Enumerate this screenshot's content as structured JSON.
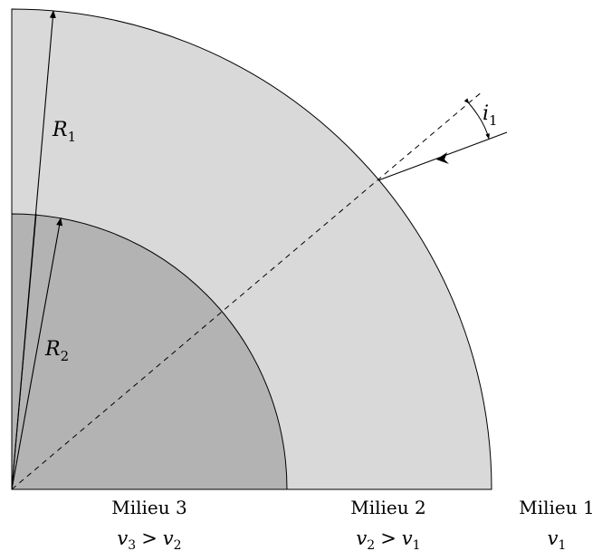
{
  "figure": {
    "labels": {
      "R1": {
        "base": "R",
        "sub": "1"
      },
      "R2": {
        "base": "R",
        "sub": "2"
      },
      "i1": {
        "base": "i",
        "sub": "1"
      }
    },
    "media": [
      {
        "name": "Milieu 3",
        "relation": {
          "lhs": "v",
          "lhs_sub": "3",
          "op": ">",
          "rhs": "v",
          "rhs_sub": "2"
        }
      },
      {
        "name": "Milieu 2",
        "relation": {
          "lhs": "v",
          "lhs_sub": "2",
          "op": ">",
          "rhs": "v",
          "rhs_sub": "1"
        }
      },
      {
        "name": "Milieu 1",
        "relation": {
          "lhs": "v",
          "lhs_sub": "1"
        }
      }
    ],
    "colors": {
      "outer_shell": "#d9d9d9",
      "inner_core": "#b3b3b3",
      "stroke": "#000000",
      "background": "#ffffff"
    }
  }
}
